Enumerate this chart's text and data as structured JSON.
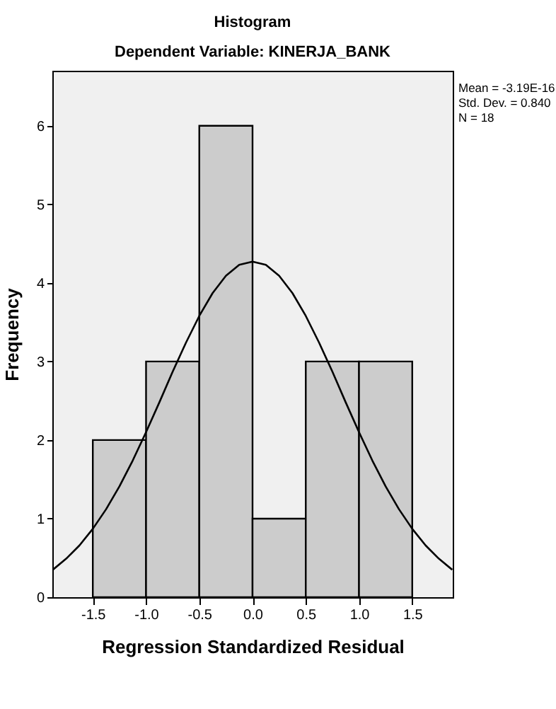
{
  "chart_data": {
    "type": "histogram",
    "title": "Histogram",
    "subtitle": "Dependent Variable: KINERJA_BANK",
    "xlabel": "Regression Standardized Residual",
    "ylabel": "Frequency",
    "series": [
      {
        "bins": [
          -1.5,
          -1.0,
          -0.5,
          0.0,
          0.5,
          1.0,
          1.5
        ],
        "values": [
          2,
          3,
          6,
          1,
          3,
          3
        ],
        "color": "#cccccc"
      },
      {
        "type": "line",
        "x": [
          -1.875,
          -1.75,
          -1.625,
          -1.5,
          -1.375,
          -1.25,
          -1.125,
          -1.0,
          -0.875,
          -0.75,
          -0.625,
          -0.5,
          -0.375,
          -0.25,
          -0.125,
          0,
          0.125,
          0.25,
          0.375,
          0.5,
          0.625,
          0.75,
          0.875,
          1.0,
          1.125,
          1.25,
          1.375,
          1.5,
          1.625,
          1.75,
          1.875
        ],
        "values": [
          0.35,
          0.49,
          0.66,
          0.87,
          1.12,
          1.41,
          1.74,
          2.1,
          2.48,
          2.87,
          3.24,
          3.58,
          3.87,
          4.09,
          4.23,
          4.27,
          4.23,
          4.09,
          3.87,
          3.58,
          3.24,
          2.87,
          2.48,
          2.1,
          1.74,
          1.41,
          1.12,
          0.87,
          0.66,
          0.49,
          0.35
        ],
        "color": "#000000"
      }
    ],
    "xlim": [
      -1.88,
      1.88
    ],
    "ylim": [
      0,
      6.7
    ],
    "xticks": [
      -1.5,
      {
        "value": -1.0,
        "label": "-1.0"
      },
      -0.5,
      {
        "value": 0.0,
        "label": "0.0"
      },
      0.5,
      {
        "value": 1.0,
        "label": "1.0"
      },
      1.5
    ],
    "yticks": [
      0,
      1,
      2,
      3,
      4,
      5,
      6
    ],
    "grid": false,
    "annotations": [
      "Mean = -3.19E-16",
      "Std. Dev. = 0.840",
      "N = 18"
    ]
  }
}
